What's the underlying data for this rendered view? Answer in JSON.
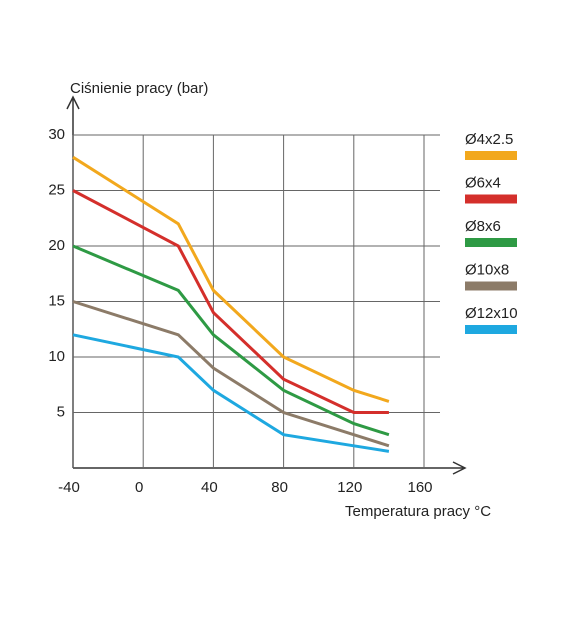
{
  "chart_data": {
    "type": "line",
    "y_label": "Ciśnienie pracy (bar)",
    "x_label": "Temperatura pracy °C",
    "x": [
      -40,
      20,
      40,
      80,
      120,
      140
    ],
    "xlim": [
      -40,
      160
    ],
    "xticks": [
      -40,
      0,
      40,
      80,
      120,
      160
    ],
    "ylim": [
      0,
      30
    ],
    "yticks": [
      5,
      10,
      15,
      20,
      25,
      30
    ],
    "grid": true,
    "series": [
      {
        "name": "Ø4x2.5",
        "color": "#f2a81d",
        "values": [
          28,
          22,
          16,
          10,
          7,
          6
        ]
      },
      {
        "name": "Ø6x4",
        "color": "#d42f2b",
        "values": [
          25,
          20,
          14,
          8,
          5,
          5
        ]
      },
      {
        "name": "Ø8x6",
        "color": "#2e9a44",
        "values": [
          20,
          16,
          12,
          7,
          4,
          3
        ]
      },
      {
        "name": "Ø10x8",
        "color": "#8c7b68",
        "values": [
          15,
          12,
          9,
          5,
          3,
          2
        ]
      },
      {
        "name": "Ø12x10",
        "color": "#1ea8e0",
        "values": [
          12,
          10,
          7,
          3,
          2,
          1.5
        ]
      }
    ]
  }
}
